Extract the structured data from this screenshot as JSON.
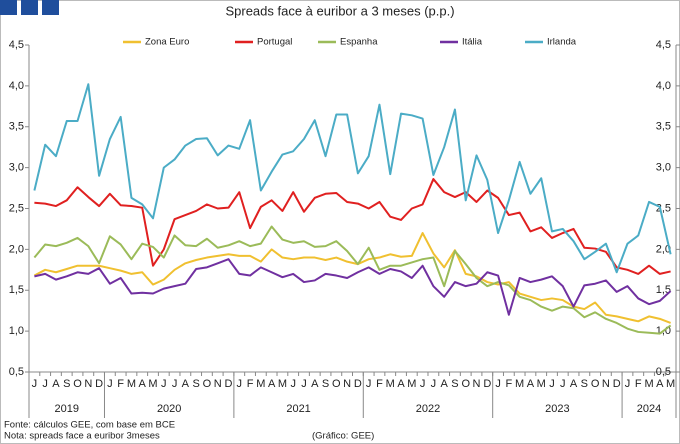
{
  "chart_data": {
    "type": "line",
    "title": "Spreads face à euribor a 3 meses (p.p.)",
    "categories": [
      "J",
      "J",
      "A",
      "S",
      "O",
      "N",
      "D",
      "J",
      "F",
      "M",
      "A",
      "M",
      "J",
      "J",
      "A",
      "S",
      "O",
      "N",
      "D",
      "J",
      "F",
      "M",
      "A",
      "M",
      "J",
      "J",
      "A",
      "S",
      "O",
      "N",
      "D",
      "J",
      "F",
      "M",
      "A",
      "M",
      "J",
      "J",
      "A",
      "S",
      "O",
      "N",
      "D",
      "J",
      "F",
      "M",
      "A",
      "M",
      "J",
      "J",
      "A",
      "S",
      "O",
      "N",
      "D",
      "J",
      "F",
      "M",
      "A",
      "M"
    ],
    "years": [
      "2019",
      "2020",
      "2021",
      "2022",
      "2023",
      "2024"
    ],
    "series": [
      {
        "name": "Zona Euro",
        "color": "#f0c030",
        "values": [
          1.68,
          1.75,
          1.72,
          1.76,
          1.8,
          1.8,
          1.8,
          1.77,
          1.74,
          1.7,
          1.72,
          1.57,
          1.63,
          1.75,
          1.83,
          1.87,
          1.9,
          1.92,
          1.94,
          1.92,
          1.92,
          1.85,
          2.0,
          1.9,
          1.88,
          1.9,
          1.9,
          1.87,
          1.9,
          1.85,
          1.82,
          1.88,
          1.9,
          1.94,
          1.91,
          1.92,
          2.2,
          1.95,
          1.78,
          1.99,
          1.7,
          1.67,
          1.6,
          1.57,
          1.6,
          1.46,
          1.42,
          1.38,
          1.4,
          1.38,
          1.3,
          1.27,
          1.35,
          1.2,
          1.18,
          1.15,
          1.12,
          1.18,
          1.15,
          1.1
        ]
      },
      {
        "name": "Portugal",
        "color": "#e02020",
        "values": [
          2.57,
          2.56,
          2.53,
          2.6,
          2.76,
          2.64,
          2.53,
          2.68,
          2.54,
          2.53,
          2.51,
          1.8,
          2.0,
          2.37,
          2.42,
          2.47,
          2.55,
          2.5,
          2.51,
          2.7,
          2.26,
          2.52,
          2.6,
          2.47,
          2.7,
          2.46,
          2.63,
          2.68,
          2.69,
          2.58,
          2.56,
          2.5,
          2.58,
          2.4,
          2.36,
          2.5,
          2.55,
          2.86,
          2.7,
          2.64,
          2.7,
          2.58,
          2.72,
          2.63,
          2.42,
          2.45,
          2.22,
          2.27,
          2.14,
          2.2,
          2.25,
          2.02,
          2.01,
          1.97,
          1.78,
          1.75,
          1.7,
          1.8,
          1.7,
          1.73
        ]
      },
      {
        "name": "Espanha",
        "color": "#9bbb59",
        "values": [
          1.9,
          2.06,
          2.04,
          2.08,
          2.14,
          2.04,
          1.83,
          2.16,
          2.06,
          1.88,
          2.07,
          2.03,
          1.9,
          2.17,
          2.05,
          2.04,
          2.13,
          2.02,
          2.05,
          2.1,
          2.04,
          2.07,
          2.28,
          2.12,
          2.08,
          2.1,
          2.03,
          2.04,
          2.1,
          1.98,
          1.82,
          2.02,
          1.75,
          1.8,
          1.8,
          1.84,
          1.88,
          1.9,
          1.55,
          1.98,
          1.82,
          1.65,
          1.55,
          1.6,
          1.56,
          1.42,
          1.38,
          1.3,
          1.25,
          1.3,
          1.28,
          1.17,
          1.23,
          1.15,
          1.1,
          1.03,
          0.99,
          0.98,
          0.97,
          1.07
        ]
      },
      {
        "name": "Itália",
        "color": "#7030a0",
        "values": [
          1.67,
          1.7,
          1.63,
          1.67,
          1.72,
          1.7,
          1.77,
          1.58,
          1.65,
          1.46,
          1.47,
          1.46,
          1.52,
          1.55,
          1.58,
          1.76,
          1.78,
          1.83,
          1.88,
          1.7,
          1.68,
          1.78,
          1.72,
          1.66,
          1.7,
          1.6,
          1.62,
          1.7,
          1.68,
          1.65,
          1.72,
          1.78,
          1.7,
          1.76,
          1.73,
          1.65,
          1.8,
          1.55,
          1.42,
          1.6,
          1.55,
          1.58,
          1.72,
          1.68,
          1.2,
          1.65,
          1.6,
          1.63,
          1.67,
          1.55,
          1.3,
          1.56,
          1.58,
          1.62,
          1.48,
          1.55,
          1.4,
          1.33,
          1.37,
          1.49
        ]
      },
      {
        "name": "Irlanda",
        "color": "#4bacc6",
        "values": [
          2.72,
          3.28,
          3.14,
          3.57,
          3.57,
          4.02,
          2.9,
          3.35,
          3.62,
          2.63,
          2.55,
          2.38,
          3.0,
          3.1,
          3.27,
          3.35,
          3.36,
          3.15,
          3.27,
          3.23,
          3.58,
          2.72,
          2.95,
          3.16,
          3.2,
          3.35,
          3.58,
          3.14,
          3.65,
          3.65,
          2.93,
          3.14,
          3.77,
          2.92,
          3.66,
          3.64,
          3.6,
          2.91,
          3.25,
          3.71,
          2.6,
          3.15,
          2.85,
          2.2,
          2.6,
          3.07,
          2.68,
          2.87,
          2.22,
          2.25,
          2.1,
          1.88,
          1.97,
          2.07,
          1.72,
          2.07,
          2.17,
          2.58,
          2.52,
          1.94
        ]
      }
    ],
    "ylim": [
      0.5,
      4.5
    ],
    "yticks": [
      {
        "value": 0.5,
        "label": "0,5"
      },
      {
        "value": 1.0,
        "label": "1,0"
      },
      {
        "value": 1.5,
        "label": "1,5"
      },
      {
        "value": 2.0,
        "label": "2,0"
      },
      {
        "value": 2.5,
        "label": "2,5"
      },
      {
        "value": 3.0,
        "label": "3,0"
      },
      {
        "value": 3.5,
        "label": "3,5"
      },
      {
        "value": 4.0,
        "label": "4,0"
      },
      {
        "value": 4.5,
        "label": "4,5"
      }
    ],
    "y2lim": [
      0.5,
      4.5
    ],
    "y2ticks": [
      {
        "value": 0.5,
        "label": "0,5"
      },
      {
        "value": 1.0,
        "label": "1,0"
      },
      {
        "value": 1.5,
        "label": "1,5"
      },
      {
        "value": 2.0,
        "label": "2,0"
      },
      {
        "value": 2.5,
        "label": "2,5"
      },
      {
        "value": 3.0,
        "label": "3,0"
      },
      {
        "value": 3.5,
        "label": "3,5"
      },
      {
        "value": 4.0,
        "label": "4,0"
      },
      {
        "value": 4.5,
        "label": "4,5"
      }
    ],
    "grid": false,
    "legend": "top",
    "source": "Fonte: cálculos GEE, com base em BCE",
    "note": "Nota: spreads face a euribor 3meses",
    "credit": "(Gráfico: GEE)"
  }
}
